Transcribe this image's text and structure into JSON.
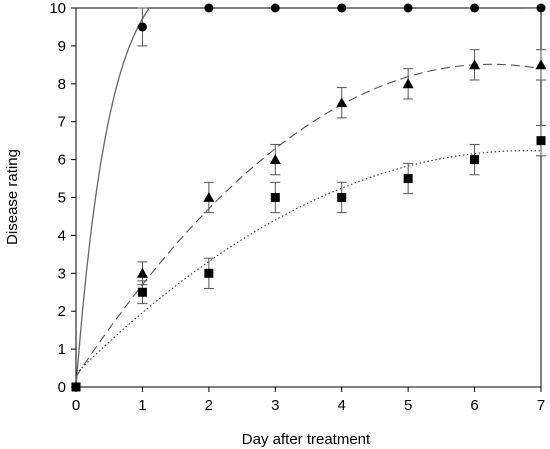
{
  "chart_data": {
    "type": "scatter",
    "xlabel": "Day after treatment",
    "ylabel": "Disease rating",
    "xlim": [
      0,
      7
    ],
    "ylim": [
      0,
      10
    ],
    "xticks": [
      "0",
      "1",
      "2",
      "3",
      "4",
      "5",
      "6",
      "7"
    ],
    "yticks": [
      "0",
      "1",
      "2",
      "3",
      "4",
      "5",
      "6",
      "7",
      "8",
      "9",
      "10"
    ],
    "grid": false,
    "legend": "none",
    "series": [
      {
        "marker": "circle",
        "fit_line": "solid",
        "color": "#000000",
        "x": [
          0,
          1,
          2,
          3,
          4,
          5,
          6,
          7
        ],
        "y": [
          0,
          9.5,
          10,
          10,
          10,
          10,
          10,
          10
        ],
        "err": [
          0,
          0.5,
          0,
          0,
          0,
          0,
          0,
          0
        ]
      },
      {
        "marker": "triangle",
        "fit_line": "dashed",
        "color": "#000000",
        "x": [
          0,
          1,
          2,
          3,
          4,
          5,
          6,
          7
        ],
        "y": [
          0,
          3.0,
          5.0,
          6.0,
          7.5,
          8.0,
          8.5,
          8.5
        ],
        "err": [
          0,
          0.3,
          0.4,
          0.4,
          0.4,
          0.4,
          0.4,
          0.4
        ]
      },
      {
        "marker": "square",
        "fit_line": "dotted",
        "color": "#000000",
        "x": [
          0,
          1,
          2,
          3,
          4,
          5,
          6,
          7
        ],
        "y": [
          0,
          2.5,
          3.0,
          5.0,
          5.0,
          5.5,
          6.0,
          6.5
        ],
        "err": [
          0,
          0.3,
          0.4,
          0.4,
          0.4,
          0.4,
          0.4,
          0.4
        ]
      }
    ]
  }
}
